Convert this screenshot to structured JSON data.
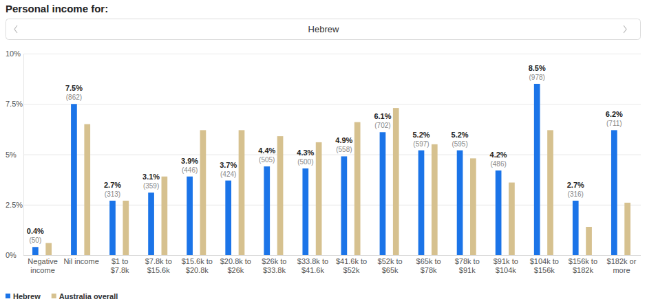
{
  "chart_data": {
    "type": "bar",
    "title": "Personal income for:",
    "subtitle": "Hebrew",
    "categories": [
      "Negative income",
      "Nil income",
      "$1 to $7.8k",
      "$7.8k to $15.6k",
      "$15.6k to $20.8k",
      "$20.8k to $26k",
      "$26k to $33.8k",
      "$33.8k to $41.6k",
      "$41.6k to $52k",
      "$52k to $65k",
      "$65k to $78k",
      "$78k to $91k",
      "$91k to $104k",
      "$104k to $156k",
      "$156k to $182k",
      "$182k or more"
    ],
    "series": [
      {
        "name": "Hebrew",
        "color": "#1b74e8",
        "values": [
          0.4,
          7.5,
          2.7,
          3.1,
          3.9,
          3.7,
          4.4,
          4.3,
          4.9,
          6.1,
          5.2,
          5.2,
          4.2,
          8.5,
          2.7,
          6.2
        ],
        "value_labels": [
          "0.4%",
          "7.5%",
          "2.7%",
          "3.1%",
          "3.9%",
          "3.7%",
          "4.4%",
          "4.3%",
          "4.9%",
          "6.1%",
          "5.2%",
          "5.2%",
          "4.2%",
          "8.5%",
          "2.7%",
          "6.2%"
        ],
        "counts": [
          50,
          862,
          313,
          359,
          446,
          424,
          505,
          500,
          558,
          702,
          597,
          595,
          486,
          978,
          316,
          711
        ],
        "count_labels": [
          "(50)",
          "(862)",
          "(313)",
          "(359)",
          "(446)",
          "(424)",
          "(505)",
          "(500)",
          "(558)",
          "(702)",
          "(597)",
          "(595)",
          "(486)",
          "(978)",
          "(316)",
          "(711)"
        ]
      },
      {
        "name": "Australia overall",
        "color": "#d6c18f",
        "values": [
          0.6,
          6.5,
          2.7,
          3.9,
          6.2,
          6.2,
          5.9,
          5.6,
          6.6,
          7.3,
          5.5,
          4.8,
          3.6,
          6.2,
          1.4,
          2.6
        ]
      }
    ],
    "ylim": [
      0,
      10
    ],
    "yticks": [
      {
        "value": 0,
        "label": "0%"
      },
      {
        "value": 2.5,
        "label": "2.5%"
      },
      {
        "value": 5,
        "label": "5%"
      },
      {
        "value": 7.5,
        "label": "7.5%"
      },
      {
        "value": 10,
        "label": "10%"
      }
    ],
    "grid": true,
    "legend": "bottom-left",
    "data_labels": true
  }
}
